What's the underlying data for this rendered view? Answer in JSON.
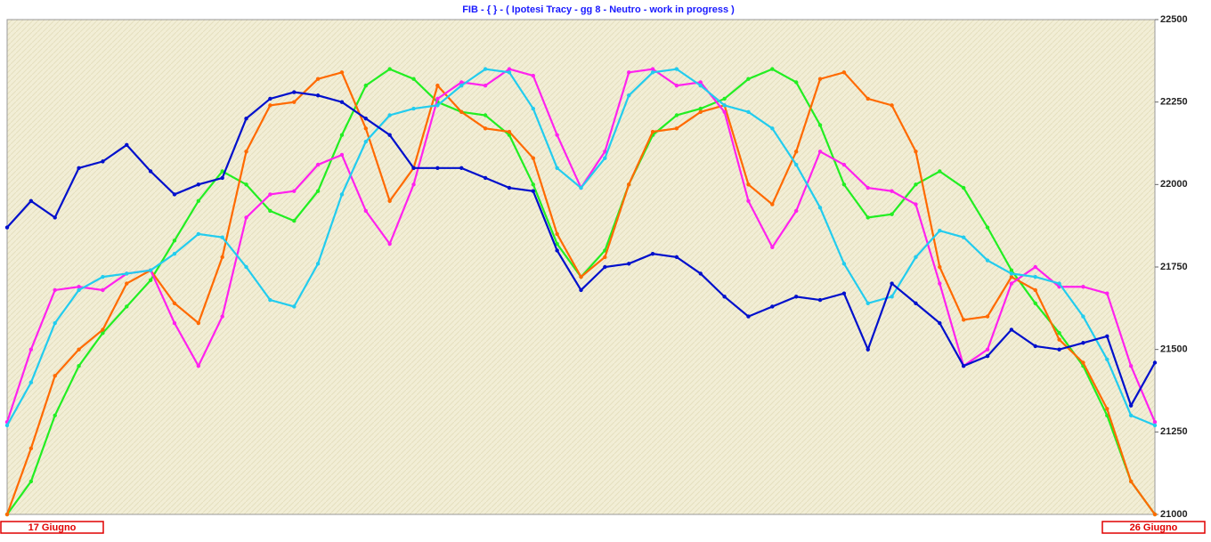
{
  "chart_data": {
    "type": "line",
    "title": "FIB  - { } - ( Ipotesi Tracy - gg 8 - Neutro - work in progress )",
    "categories": [
      "17 Giugno",
      null,
      null,
      null,
      null,
      null,
      null,
      null,
      null,
      null,
      null,
      null,
      null,
      null,
      null,
      null,
      null,
      null,
      null,
      null,
      null,
      null,
      null,
      null,
      null,
      null,
      null,
      null,
      null,
      null,
      null,
      null,
      null,
      null,
      null,
      null,
      null,
      null,
      null,
      null,
      null,
      null,
      null,
      null,
      null,
      null,
      null,
      null,
      "26 Giugno"
    ],
    "ylim": [
      21000,
      22500
    ],
    "yticks": [
      21000,
      21250,
      21500,
      21750,
      22000,
      22250,
      22500
    ],
    "series": [
      {
        "color": "#22ee22",
        "values": [
          21000,
          21100,
          21300,
          21450,
          21550,
          21630,
          21710,
          21830,
          21950,
          22040,
          22000,
          21920,
          21890,
          21980,
          22150,
          22300,
          22350,
          22320,
          22250,
          22220,
          22210,
          22150,
          22000,
          21820,
          21720,
          21800,
          22000,
          22150,
          22210,
          22230,
          22260,
          22320,
          22350,
          22310,
          22180,
          22000,
          21900,
          21910,
          22000,
          22040,
          21990,
          21870,
          21740,
          21640,
          21550,
          21450,
          21300,
          21100,
          21000
        ]
      },
      {
        "color": "#ff6a00",
        "values": [
          21000,
          21200,
          21420,
          21500,
          21560,
          21700,
          21740,
          21640,
          21580,
          21780,
          22100,
          22240,
          22250,
          22320,
          22340,
          22170,
          21950,
          22050,
          22300,
          22220,
          22170,
          22160,
          22080,
          21850,
          21720,
          21780,
          22000,
          22160,
          22170,
          22220,
          22240,
          22000,
          21940,
          22100,
          22320,
          22340,
          22260,
          22240,
          22100,
          21750,
          21590,
          21600,
          21720,
          21680,
          21530,
          21460,
          21320,
          21100,
          21000
        ]
      },
      {
        "color": "#ff22ee",
        "values": [
          21280,
          21500,
          21680,
          21690,
          21680,
          21730,
          21740,
          21580,
          21450,
          21600,
          21900,
          21970,
          21980,
          22060,
          22090,
          21920,
          21820,
          22000,
          22260,
          22310,
          22300,
          22350,
          22330,
          22150,
          21990,
          22100,
          22340,
          22350,
          22300,
          22310,
          22220,
          21950,
          21810,
          21920,
          22100,
          22060,
          21990,
          21980,
          21940,
          21700,
          21450,
          21500,
          21700,
          21750,
          21690,
          21690,
          21670,
          21450,
          21280
        ]
      },
      {
        "color": "#22ccee",
        "values": [
          21270,
          21400,
          21580,
          21680,
          21720,
          21730,
          21740,
          21790,
          21850,
          21840,
          21750,
          21650,
          21630,
          21760,
          21970,
          22130,
          22210,
          22230,
          22240,
          22300,
          22350,
          22340,
          22230,
          22050,
          21990,
          22080,
          22270,
          22340,
          22350,
          22300,
          22240,
          22220,
          22170,
          22060,
          21930,
          21760,
          21640,
          21660,
          21780,
          21860,
          21840,
          21770,
          21730,
          21720,
          21700,
          21600,
          21470,
          21300,
          21270
        ]
      },
      {
        "color": "#0010cc",
        "values": [
          21870,
          21950,
          21900,
          22050,
          22070,
          22120,
          22040,
          21970,
          22000,
          22020,
          22200,
          22260,
          22280,
          22270,
          22250,
          22200,
          22150,
          22050,
          22050,
          22050,
          22020,
          21990,
          21980,
          21800,
          21680,
          21750,
          21760,
          21790,
          21780,
          21730,
          21660,
          21600,
          21630,
          21660,
          21650,
          21670,
          21500,
          21700,
          21640,
          21580,
          21450,
          21480,
          21560,
          21510,
          21500,
          21520,
          21540,
          21330,
          21460
        ]
      }
    ]
  }
}
